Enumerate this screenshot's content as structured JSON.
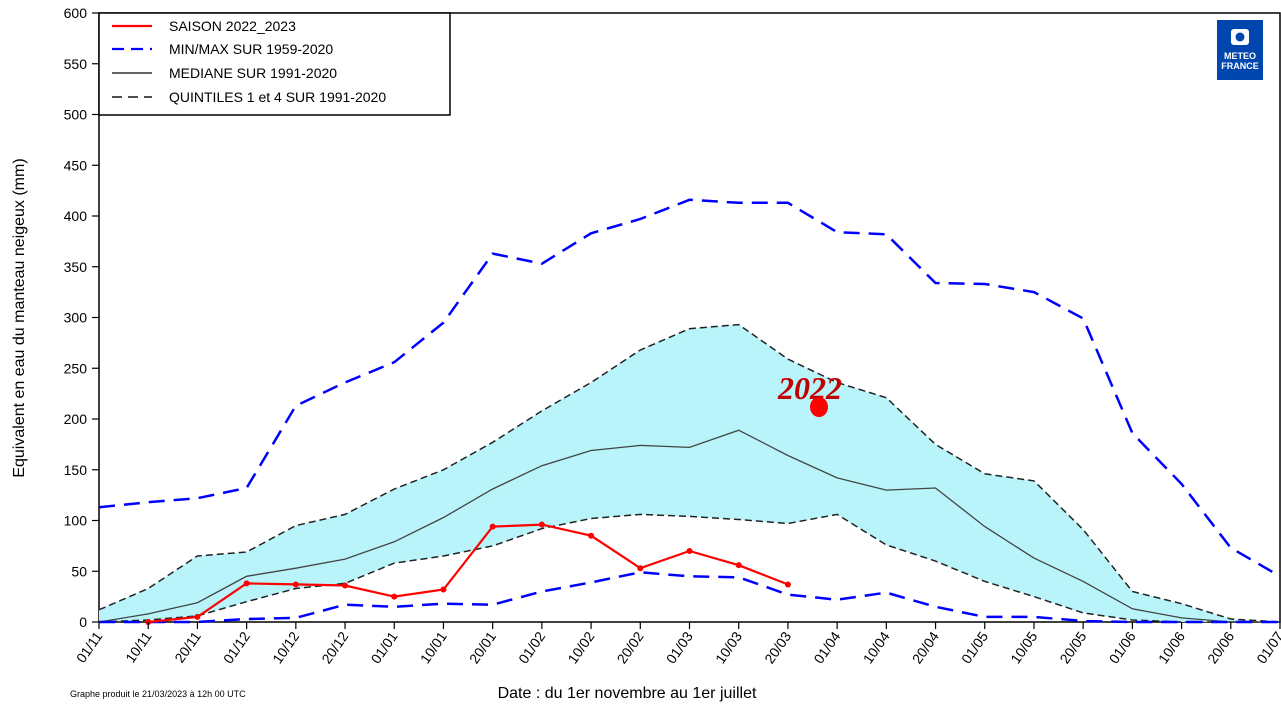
{
  "chart_data": {
    "type": "line",
    "title": "",
    "xlabel": "Date : du 1er novembre au 1er juillet",
    "ylabel": "Equivalent en eau du manteau neigeux (mm)",
    "ylim": [
      0,
      600
    ],
    "yticks": [
      0,
      50,
      100,
      150,
      200,
      250,
      300,
      350,
      400,
      450,
      500,
      550,
      600
    ],
    "categories": [
      "01/11",
      "10/11",
      "20/11",
      "01/12",
      "10/12",
      "20/12",
      "01/01",
      "10/01",
      "20/01",
      "01/02",
      "10/02",
      "20/02",
      "01/03",
      "10/03",
      "20/03",
      "01/04",
      "10/04",
      "20/04",
      "01/05",
      "10/05",
      "20/05",
      "01/06",
      "10/06",
      "20/06",
      "01/07"
    ],
    "grid": false,
    "legend_position": "top-left",
    "colors": {
      "season": "#ff0000",
      "minmax": "#0000ff",
      "median": "#333333",
      "quintile": "#333333",
      "band_fill": "#b8f4f9",
      "annotation": "#c00000",
      "logo_bg": "#0046ad"
    },
    "legend": [
      {
        "label": "SAISON 2022_2023",
        "style": "solid-red"
      },
      {
        "label": "MIN/MAX SUR 1959-2020",
        "style": "dashed-blue"
      },
      {
        "label": "MEDIANE SUR 1991-2020",
        "style": "solid-gray"
      },
      {
        "label": "QUINTILES 1 et 4 SUR 1991-2020",
        "style": "dashed-black"
      }
    ],
    "series": [
      {
        "name": "SAISON 2022_2023",
        "values": [
          null,
          0,
          5,
          38,
          37,
          36,
          25,
          32,
          94,
          96,
          85,
          53,
          70,
          56,
          37,
          null,
          null,
          null,
          null,
          null,
          null,
          null,
          null,
          null,
          null
        ]
      },
      {
        "name": "MIN/MAX SUR 1959-2020",
        "role": "max",
        "values": [
          113,
          118,
          122,
          132,
          213,
          236,
          256,
          295,
          363,
          353,
          383,
          397,
          416,
          413,
          413,
          384,
          382,
          334,
          333,
          325,
          299,
          186,
          136,
          73,
          45
        ]
      },
      {
        "name": "MIN/MAX SUR 1959-2020",
        "role": "min",
        "values": [
          0,
          0,
          0,
          3,
          4,
          17,
          15,
          18,
          17,
          30,
          39,
          49,
          45,
          44,
          27,
          22,
          29,
          15,
          5,
          5,
          1,
          0,
          0,
          0,
          0
        ]
      },
      {
        "name": "MEDIANE SUR 1991-2020",
        "values": [
          0,
          8,
          19,
          45,
          53,
          62,
          79,
          103,
          131,
          154,
          169,
          174,
          172,
          189,
          164,
          142,
          130,
          132,
          94,
          63,
          40,
          13,
          4,
          0,
          0
        ]
      },
      {
        "name": "QUINTILES 1 et 4 SUR 1991-2020",
        "role": "q4",
        "values": [
          12,
          33,
          65,
          69,
          95,
          106,
          131,
          150,
          177,
          208,
          236,
          268,
          289,
          293,
          259,
          236,
          221,
          175,
          146,
          139,
          91,
          30,
          18,
          3,
          0
        ]
      },
      {
        "name": "QUINTILES 1 et 4 SUR 1991-2020",
        "role": "q1",
        "values": [
          0,
          2,
          6,
          20,
          33,
          38,
          58,
          65,
          75,
          92,
          102,
          106,
          104,
          101,
          97,
          106,
          76,
          60,
          40,
          25,
          9,
          2,
          0,
          0,
          0
        ]
      }
    ],
    "annotations": [
      {
        "text": "2022",
        "x": "~27/03",
        "y": 230,
        "color": "#c00000"
      }
    ]
  },
  "footnote": "Graphe produit le 21/03/2023 à 12h 00 UTC",
  "logo": {
    "line1": "METEO",
    "line2": "FRANCE"
  }
}
